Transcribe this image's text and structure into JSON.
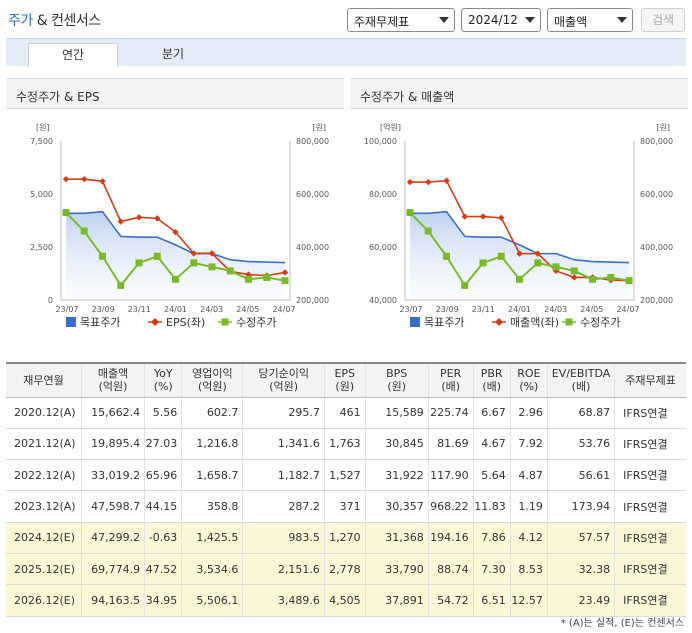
{
  "header": {
    "title_main": "주가",
    "title_sep": "&",
    "title_sub": "컨센서스",
    "select_statement": "주재무제표",
    "select_period": "2024/12",
    "select_metric": "매출액",
    "search_label": "검색"
  },
  "tabs": [
    {
      "label": "연간",
      "active": true
    },
    {
      "label": "분기",
      "active": false
    }
  ],
  "charts": [
    {
      "title": "수정주가 & EPS",
      "left_unit": "[원]",
      "right_unit": "[원]",
      "legend": [
        "목표주가",
        "EPS(좌)",
        "수정주가"
      ]
    },
    {
      "title": "수정주가 & 매출액",
      "left_unit": "[억원]",
      "right_unit": "[원]",
      "legend": [
        "목표주가",
        "매출액(좌)",
        "수정주가"
      ]
    }
  ],
  "chart_data": [
    {
      "type": "line",
      "title": "수정주가 & EPS",
      "x_tick_labels": [
        "23/07",
        "23/09",
        "23/11",
        "24/01",
        "24/03",
        "24/05",
        "24/07"
      ],
      "left_axis": {
        "unit": "[원]",
        "ticks": [
          "0",
          "2,500",
          "5,000",
          "7,500"
        ],
        "range": [
          0,
          7500
        ]
      },
      "right_axis": {
        "unit": "[원]",
        "ticks": [
          "200,000",
          "400,000",
          "600,000",
          "800,000"
        ],
        "range": [
          200000,
          800000
        ]
      },
      "series": [
        {
          "name": "목표주가",
          "axis": "right",
          "color": "#3a6fc9",
          "values": [
            527000,
            527000,
            533000,
            440000,
            437000,
            437000,
            408000,
            375000,
            375000,
            352000,
            345000,
            343000,
            341000
          ]
        },
        {
          "name": "EPS(좌)",
          "axis": "left",
          "color": "#d33c16",
          "values": [
            5700,
            5700,
            5600,
            3700,
            3900,
            3850,
            3200,
            2200,
            2200,
            1350,
            1200,
            1150,
            1300
          ]
        },
        {
          "name": "수정주가",
          "axis": "right",
          "color": "#7ab929",
          "values": [
            530000,
            460000,
            365000,
            255000,
            340000,
            365000,
            278000,
            340000,
            325000,
            310000,
            278000,
            285000,
            273000
          ]
        }
      ]
    },
    {
      "type": "line",
      "title": "수정주가 & 매출액",
      "x_tick_labels": [
        "23/07",
        "23/09",
        "23/11",
        "24/01",
        "24/03",
        "24/05",
        "24/07"
      ],
      "left_axis": {
        "unit": "[억원]",
        "ticks": [
          "40,000",
          "60,000",
          "80,000",
          "100,000"
        ],
        "range": [
          40000,
          100000
        ]
      },
      "right_axis": {
        "unit": "[원]",
        "ticks": [
          "200,000",
          "400,000",
          "600,000",
          "800,000"
        ],
        "range": [
          200000,
          800000
        ]
      },
      "series": [
        {
          "name": "목표주가",
          "axis": "right",
          "color": "#3a6fc9",
          "values": [
            527000,
            527000,
            533000,
            440000,
            437000,
            437000,
            408000,
            375000,
            375000,
            352000,
            345000,
            343000,
            341000
          ]
        },
        {
          "name": "매출액(좌)",
          "axis": "left",
          "color": "#d33c16",
          "values": [
            84500,
            84500,
            85000,
            71500,
            71500,
            71000,
            57500,
            57500,
            51000,
            48500,
            48500,
            47500,
            47300
          ]
        },
        {
          "name": "수정주가",
          "axis": "right",
          "color": "#7ab929",
          "values": [
            530000,
            460000,
            365000,
            255000,
            340000,
            365000,
            278000,
            340000,
            325000,
            310000,
            278000,
            285000,
            273000
          ]
        }
      ]
    }
  ],
  "table": {
    "headers": [
      [
        "재무연월"
      ],
      [
        "매출액",
        "(억원)"
      ],
      [
        "YoY",
        "(%)"
      ],
      [
        "영업이익",
        "(억원)"
      ],
      [
        "당기순이익",
        "(억원)"
      ],
      [
        "EPS",
        "(원)"
      ],
      [
        "BPS",
        "(원)"
      ],
      [
        "PER",
        "(배)"
      ],
      [
        "PBR",
        "(배)"
      ],
      [
        "ROE",
        "(%)"
      ],
      [
        "EV/EBITDA",
        "(배)"
      ],
      [
        "주재무제표"
      ]
    ],
    "rows": [
      {
        "est": false,
        "cells": [
          "2020.12(A)",
          "15,662.4",
          "5.56",
          "602.7",
          "295.7",
          "461",
          "15,589",
          "225.74",
          "6.67",
          "2.96",
          "68.87",
          "IFRS연결"
        ]
      },
      {
        "est": false,
        "cells": [
          "2021.12(A)",
          "19,895.4",
          "27.03",
          "1,216.8",
          "1,341.6",
          "1,763",
          "30,845",
          "81.69",
          "4.67",
          "7.92",
          "53.76",
          "IFRS연결"
        ]
      },
      {
        "est": false,
        "cells": [
          "2022.12(A)",
          "33,019.2",
          "65.96",
          "1,658.7",
          "1,182.7",
          "1,527",
          "31,922",
          "117.90",
          "5.64",
          "4.87",
          "56.61",
          "IFRS연결"
        ]
      },
      {
        "est": false,
        "cells": [
          "2023.12(A)",
          "47,598.7",
          "44.15",
          "358.8",
          "287.2",
          "371",
          "30,357",
          "968.22",
          "11.83",
          "1.19",
          "173.94",
          "IFRS연결"
        ]
      },
      {
        "est": true,
        "cells": [
          "2024.12(E)",
          "47,299.2",
          "-0.63",
          "1,425.5",
          "983.5",
          "1,270",
          "31,368",
          "194.16",
          "7.86",
          "4.12",
          "57.57",
          "IFRS연결"
        ]
      },
      {
        "est": true,
        "cells": [
          "2025.12(E)",
          "69,774.9",
          "47.52",
          "3,534.6",
          "2,151.6",
          "2,778",
          "33,790",
          "88.74",
          "7.30",
          "8.53",
          "32.38",
          "IFRS연결"
        ]
      },
      {
        "est": true,
        "cells": [
          "2026.12(E)",
          "94,163.5",
          "34.95",
          "5,506.1",
          "3,489.6",
          "4,505",
          "37,891",
          "54.72",
          "6.51",
          "12.57",
          "23.49",
          "IFRS연결"
        ]
      }
    ]
  },
  "footnote": "* (A)는 실적, (E)는 컨센서스"
}
